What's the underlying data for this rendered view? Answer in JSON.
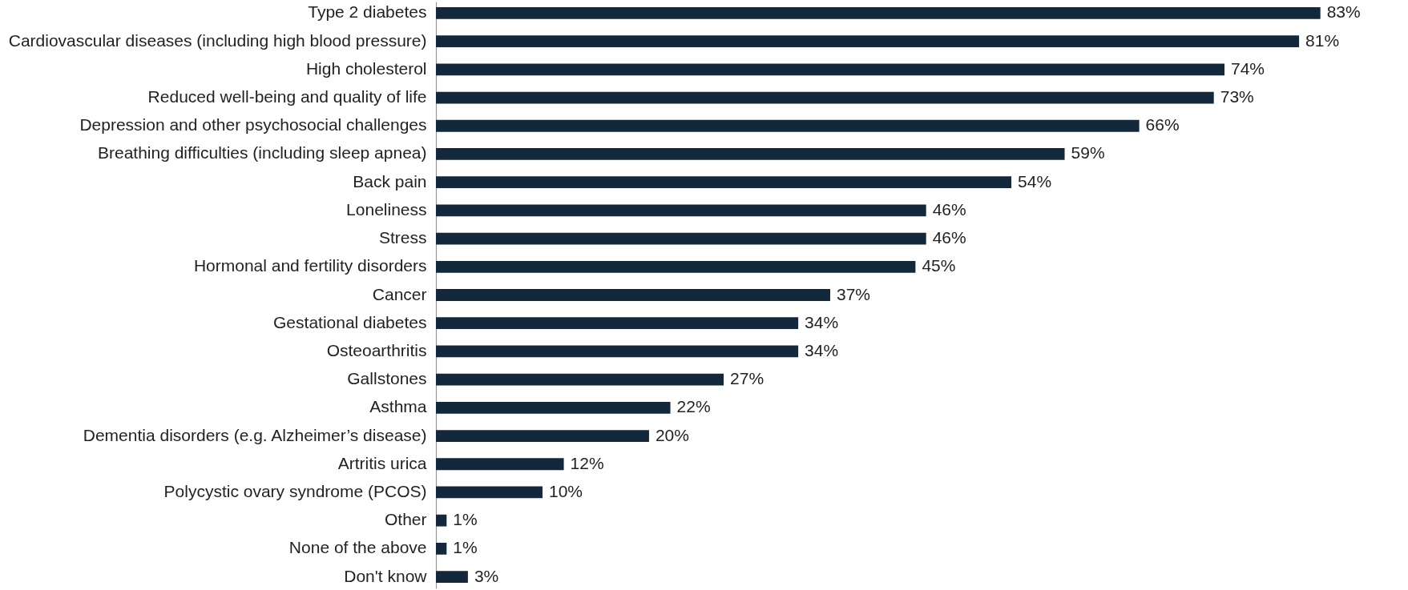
{
  "chart_data": {
    "type": "bar",
    "orientation": "horizontal",
    "color": "#13283b",
    "categories": [
      "Type 2 diabetes",
      "Cardiovascular diseases (including high blood pressure)",
      "High cholesterol",
      "Reduced well-being and quality of life",
      "Depression and other psychosocial challenges",
      "Breathing difficulties (including sleep apnea)",
      "Back pain",
      "Loneliness",
      "Stress",
      "Hormonal and fertility disorders",
      "Cancer",
      "Gestational diabetes",
      "Osteoarthritis",
      "Gallstones",
      "Asthma",
      "Dementia disorders (e.g. Alzheimer’s disease)",
      "Artritis urica",
      "Polycystic ovary syndrome (PCOS)",
      "Other",
      "None of the above",
      "Don't know"
    ],
    "values": [
      83,
      81,
      74,
      73,
      66,
      59,
      54,
      46,
      46,
      45,
      37,
      34,
      34,
      27,
      22,
      20,
      12,
      10,
      1,
      1,
      3
    ],
    "value_labels": [
      "83%",
      "81%",
      "74%",
      "73%",
      "66%",
      "59%",
      "54%",
      "46%",
      "46%",
      "45%",
      "37%",
      "34%",
      "34%",
      "27%",
      "22%",
      "20%",
      "12%",
      "10%",
      "1%",
      "1%",
      "3%"
    ]
  }
}
